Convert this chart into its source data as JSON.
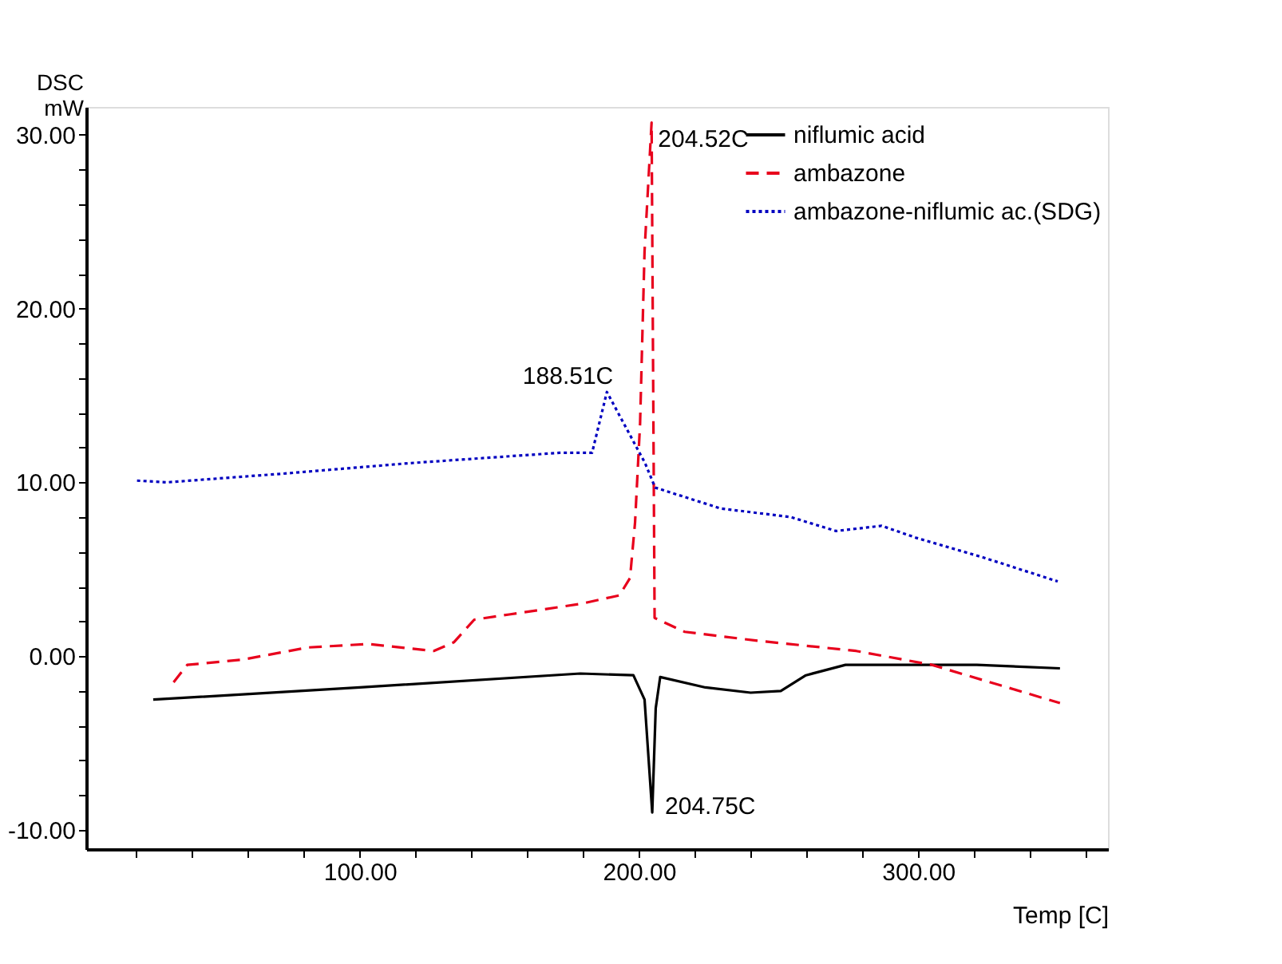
{
  "chart_data": {
    "type": "line",
    "ylabel": "DSC\nmW",
    "xlabel": "Temp  [C]",
    "xlim": [
      2,
      368
    ],
    "xticks": [
      {
        "value": 20,
        "label": null
      },
      {
        "value": 40,
        "label": null
      },
      {
        "value": 60,
        "label": null
      },
      {
        "value": 80,
        "label": null
      },
      {
        "value": 100,
        "label": "100.00"
      },
      {
        "value": 120,
        "label": null
      },
      {
        "value": 140,
        "label": null
      },
      {
        "value": 160,
        "label": null
      },
      {
        "value": 180,
        "label": null
      },
      {
        "value": 200,
        "label": "200.00"
      },
      {
        "value": 220,
        "label": null
      },
      {
        "value": 240,
        "label": null
      },
      {
        "value": 260,
        "label": null
      },
      {
        "value": 280,
        "label": null
      },
      {
        "value": 300,
        "label": "300.00"
      },
      {
        "value": 320,
        "label": null
      },
      {
        "value": 340,
        "label": null
      },
      {
        "value": 360,
        "label": null
      }
    ],
    "ylim": [
      -11.1,
      31.6
    ],
    "yticks": [
      {
        "value": -10,
        "label": "-10.00"
      },
      {
        "value": -8,
        "label": null
      },
      {
        "value": -6,
        "label": null
      },
      {
        "value": -4,
        "label": null
      },
      {
        "value": -2,
        "label": null
      },
      {
        "value": 0,
        "label": "0.00"
      },
      {
        "value": 2,
        "label": null
      },
      {
        "value": 4,
        "label": null
      },
      {
        "value": 6,
        "label": null
      },
      {
        "value": 8,
        "label": null
      },
      {
        "value": 10,
        "label": "10.00"
      },
      {
        "value": 12,
        "label": null
      },
      {
        "value": 14,
        "label": null
      },
      {
        "value": 16,
        "label": null
      },
      {
        "value": 18,
        "label": null
      },
      {
        "value": 20,
        "label": "20.00"
      },
      {
        "value": 22,
        "label": null
      },
      {
        "value": 24,
        "label": null
      },
      {
        "value": 26,
        "label": null
      },
      {
        "value": 28,
        "label": null
      },
      {
        "value": 30,
        "label": "30.00"
      }
    ],
    "grid": false,
    "legend": "top right",
    "marker": "none",
    "series": [
      {
        "name": "niflumic acid",
        "color": "#000000",
        "line_style": "solid",
        "x": [
          26,
          100,
          179,
          198,
          202,
          204.75,
          206,
          207.6,
          223.8,
          240,
          250.8,
          259.8,
          274,
          321,
          350.8
        ],
        "values": [
          -2.5,
          -1.8,
          -1.0,
          -1.1,
          -2.5,
          -9.0,
          -3.0,
          -1.2,
          -1.8,
          -2.1,
          -2.0,
          -1.1,
          -0.5,
          -0.5,
          -0.7
        ]
      },
      {
        "name": "ambazone",
        "color": "#e8001c",
        "line_style": "dashed",
        "x": [
          33.3,
          38.2,
          58,
          81.4,
          103,
          126.5,
          133.7,
          141,
          153.5,
          178.8,
          193,
          196.8,
          198.6,
          200.4,
          202,
          204.52,
          205.6,
          216.4,
          241.8,
          277.8,
          304.9,
          350.8
        ],
        "values": [
          -1.5,
          -0.5,
          -0.2,
          0.5,
          0.7,
          0.3,
          0.8,
          2.1,
          2.4,
          3.0,
          3.5,
          4.5,
          7.7,
          13.4,
          23.3,
          30.7,
          2.2,
          1.4,
          0.9,
          0.3,
          -0.5,
          -2.7
        ]
      },
      {
        "name": "ambazone-niflumic ac.(SDG)",
        "color": "#0000c0",
        "line_style": "dotted",
        "x": [
          20.2,
          30.8,
          72.4,
          117.5,
          171.5,
          183.2,
          188.51,
          202.2,
          205.8,
          229.2,
          254.4,
          270.6,
          286.9,
          299.5,
          322.9,
          350
        ],
        "values": [
          10.1,
          10.0,
          10.5,
          11.1,
          11.7,
          11.7,
          15.2,
          11.1,
          9.7,
          8.5,
          8.0,
          7.2,
          7.5,
          6.8,
          5.7,
          4.3
        ]
      }
    ],
    "annotations": [
      {
        "text": "204.52C",
        "x": 204.52,
        "y": 30.7
      },
      {
        "text": "188.51C",
        "x": 188.51,
        "y": 15.2
      },
      {
        "text": "204.75C",
        "x": 204.75,
        "y": -9.0
      }
    ]
  }
}
